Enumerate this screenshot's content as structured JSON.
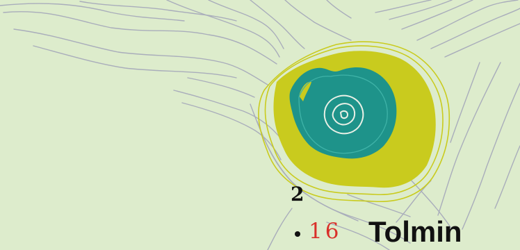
{
  "map": {
    "background_color": "#ddeccc",
    "contour_color": "#a9adbb",
    "zone_colors": {
      "outer": "#c9cb1e",
      "inner": "#1e938a",
      "core": "#e9f0e6"
    },
    "labels": {
      "zone_number": "2",
      "route_number": "16",
      "place_name": "Tolmin"
    },
    "icons": {
      "place_marker": "black-dot"
    }
  }
}
